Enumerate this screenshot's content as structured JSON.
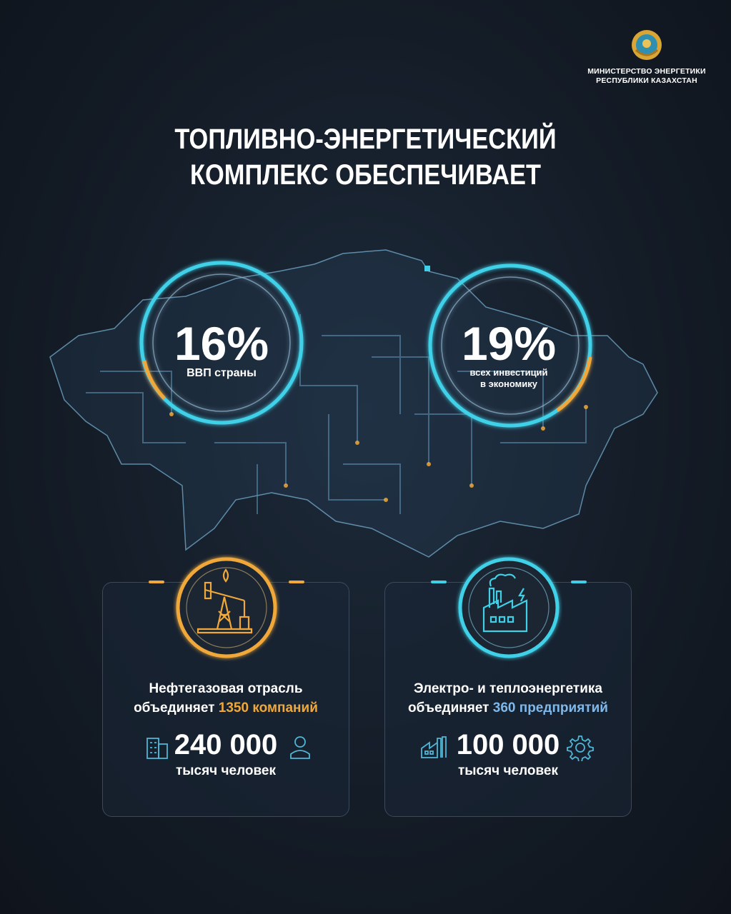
{
  "header": {
    "emblem": "state-emblem-of-kazakhstan",
    "ministry_line1": "МИНИСТЕРСТВО ЭНЕРГЕТИКИ",
    "ministry_line2": "РЕСПУБЛИКИ КАЗАХСТАН"
  },
  "title": {
    "line1": "ТОПЛИВНО-ЭНЕРГЕТИЧЕСКИЙ",
    "line2": "КОМПЛЕКС ОБЕСПЕЧИВАЕТ"
  },
  "stats": [
    {
      "value": "16%",
      "percent": 16,
      "label": "ВВП страны"
    },
    {
      "value": "19%",
      "percent": 19,
      "label_line1": "всех инвестиций",
      "label_line2": "в экономику"
    }
  ],
  "cards": [
    {
      "icon": "oil-pump-derrick-icon",
      "line1": "Нефтегазовая отрасль",
      "line2_prefix": "объединяет ",
      "highlight": "1350 компаний",
      "number": "240 000",
      "unit": "тысяч человек",
      "accent": "#f0a83a"
    },
    {
      "icon": "power-plant-factory-icon",
      "line1": "Электро- и теплоэнергетика",
      "line2_prefix": "объединяет ",
      "highlight": "360 предприятий",
      "number": "100 000",
      "unit": "тысяч человек",
      "accent": "#3fd0e8",
      "highlight_color": "#7fb8ea"
    }
  ],
  "colors": {
    "gold": "#f0a83a",
    "cyan": "#3fd0e8",
    "background": "#141c27"
  }
}
